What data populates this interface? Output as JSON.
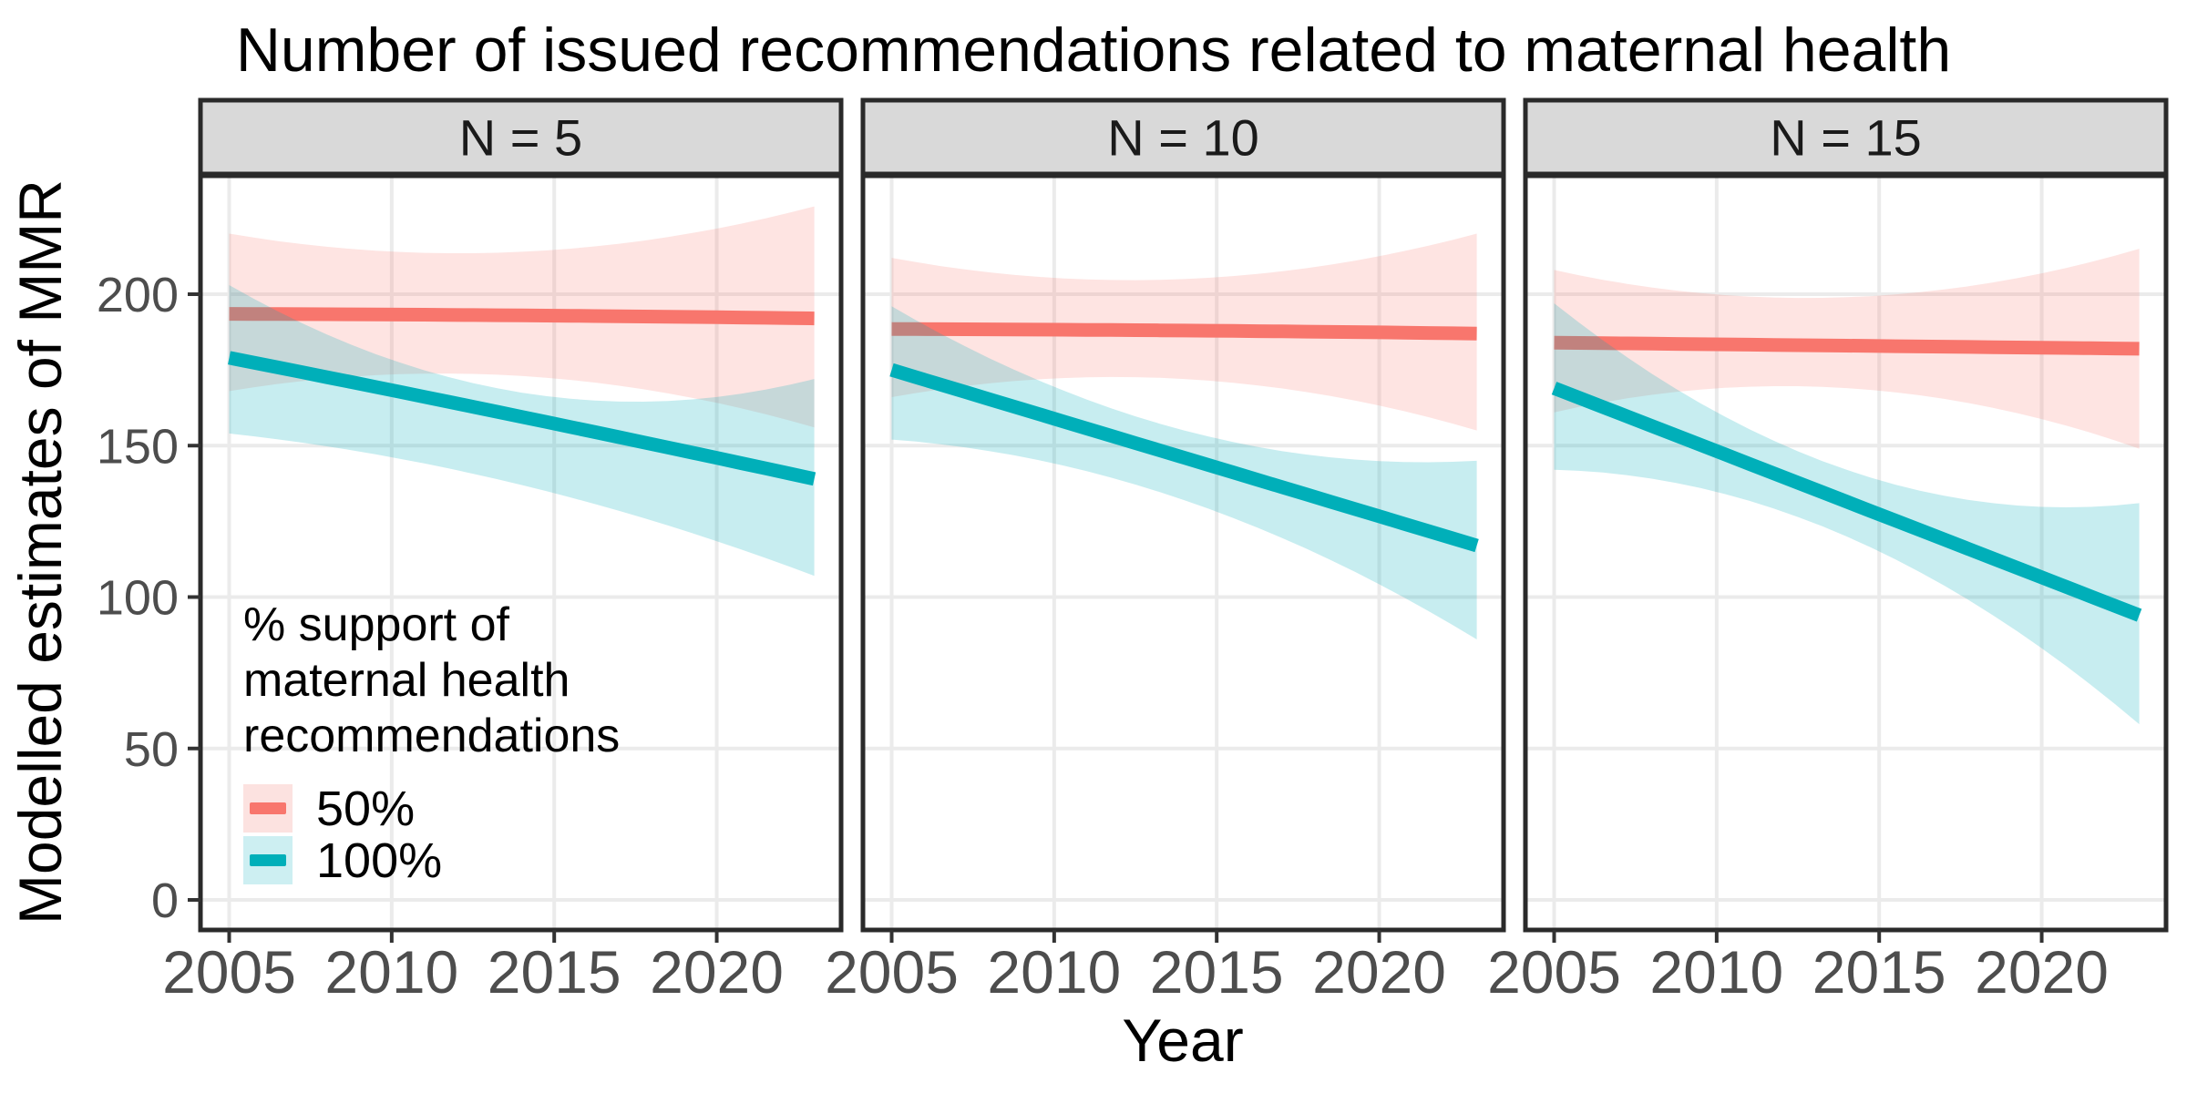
{
  "title": "Number of issued recommendations related to maternal health",
  "axes": {
    "x_title": "Year",
    "y_title": "Modelled estimates of MMR",
    "x_tick_labels": [
      "2005",
      "2010",
      "2015",
      "2020"
    ],
    "y_tick_labels": [
      "0",
      "50",
      "100",
      "150",
      "200"
    ]
  },
  "legend": {
    "title": "% support of\nmaternal health\nrecommendations",
    "items": [
      {
        "label": "50%",
        "line_color": "#F8766D",
        "fill_color": "#FCE2E0"
      },
      {
        "label": "100%",
        "line_color": "#00AFB9",
        "fill_color": "#CDEFF2"
      }
    ]
  },
  "style": {
    "red_line": "#F8766D",
    "teal_line": "#00AFB9",
    "red_ribbon": "rgba(248,118,109,0.20)",
    "teal_ribbon": "rgba(0,175,185,0.22)",
    "strip_fill": "#D9D9D9",
    "strip_border": "#2A2A2A",
    "panel_border": "#2A2A2A",
    "gridline": "#EBEBEB",
    "tick_mark": "#333333",
    "tick_text": "#4D4D4D",
    "strip_text": "#1A1A1A"
  },
  "chart_data": {
    "type": "line",
    "title": "Number of issued recommendations related to maternal health",
    "xlabel": "Year",
    "ylabel": "Modelled estimates of MMR",
    "x_ticks": [
      2005,
      2010,
      2015,
      2020
    ],
    "y_ticks": [
      0,
      50,
      100,
      150,
      200
    ],
    "xlim": [
      2004.1,
      2023.9
    ],
    "ylim": [
      -10,
      240
    ],
    "grid": "major-only",
    "legend_title": "% support of maternal health recommendations",
    "legend_position": "inside bottom-left of first panel",
    "anchor_years": [
      2005,
      2014,
      2023
    ],
    "facets": [
      {
        "label": "N = 5",
        "series": [
          {
            "name": "50%",
            "values": [
              193.5,
              193,
              192
            ],
            "ci_low": [
              168,
              173,
              156
            ],
            "ci_high": [
              220,
              214,
              229
            ]
          },
          {
            "name": "100%",
            "values": [
              179,
              159.5,
              139
            ],
            "ci_low": [
              154,
              137,
              107
            ],
            "ci_high": [
              203,
              167.5,
              172
            ]
          }
        ]
      },
      {
        "label": "N = 10",
        "series": [
          {
            "name": "50%",
            "values": [
              188.5,
              188,
              187
            ],
            "ci_low": [
              166,
              172,
              155
            ],
            "ci_high": [
              212,
              205,
              220
            ]
          },
          {
            "name": "100%",
            "values": [
              175,
              146,
              117
            ],
            "ci_low": [
              152,
              132,
              86
            ],
            "ci_high": [
              196,
              155,
              145
            ]
          }
        ]
      },
      {
        "label": "N = 15",
        "series": [
          {
            "name": "50%",
            "values": [
              184,
              183,
              182
            ],
            "ci_low": [
              161,
              169,
              149
            ],
            "ci_high": [
              208,
              199,
              215
            ]
          },
          {
            "name": "100%",
            "values": [
              169,
              131.5,
              94
            ],
            "ci_low": [
              142,
              120,
              58
            ],
            "ci_high": [
              197,
              142,
              131
            ]
          }
        ]
      }
    ]
  }
}
